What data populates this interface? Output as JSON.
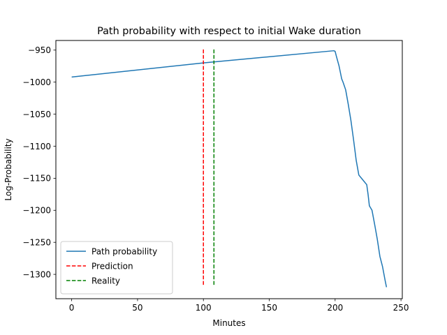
{
  "chart_data": {
    "type": "line",
    "title": "Path probability with respect to initial Wake duration",
    "xlabel": "Minutes",
    "ylabel": "Log-Probability",
    "xlim": [
      -12,
      251
    ],
    "ylim": [
      -1338,
      -935
    ],
    "xticks": [
      0,
      50,
      100,
      150,
      200,
      250
    ],
    "yticks": [
      -950,
      -1000,
      -1050,
      -1100,
      -1150,
      -1200,
      -1250,
      -1300
    ],
    "xtick_labels": [
      "0",
      "50",
      "100",
      "150",
      "200",
      "250"
    ],
    "ytick_labels": [
      "−950",
      "−1000",
      "−1050",
      "−1100",
      "−1150",
      "−1200",
      "−1250",
      "−1300"
    ],
    "grid": false,
    "legend_position": "lower left",
    "series": [
      {
        "name": "Path probability",
        "color": "#1f77b4",
        "style": "solid",
        "x": [
          0,
          100,
          199,
          200,
          201,
          203,
          205,
          206,
          208,
          210,
          212,
          214,
          216,
          218,
          220,
          222,
          224,
          225,
          226,
          228,
          230,
          232,
          234,
          236,
          238,
          239
        ],
        "y": [
          -992,
          -970,
          -951,
          -952,
          -960,
          -975,
          -995,
          -1000,
          -1012,
          -1035,
          -1060,
          -1090,
          -1122,
          -1145,
          -1150,
          -1155,
          -1160,
          -1175,
          -1193,
          -1200,
          -1222,
          -1245,
          -1272,
          -1288,
          -1310,
          -1320
        ]
      },
      {
        "name": "Prediction",
        "color": "#ff0000",
        "style": "dashed",
        "x": [
          100,
          100
        ],
        "y": [
          -949,
          -1319
        ]
      },
      {
        "name": "Reality",
        "color": "#008000",
        "style": "dashed",
        "x": [
          108,
          108
        ],
        "y": [
          -949,
          -1319
        ]
      }
    ]
  }
}
